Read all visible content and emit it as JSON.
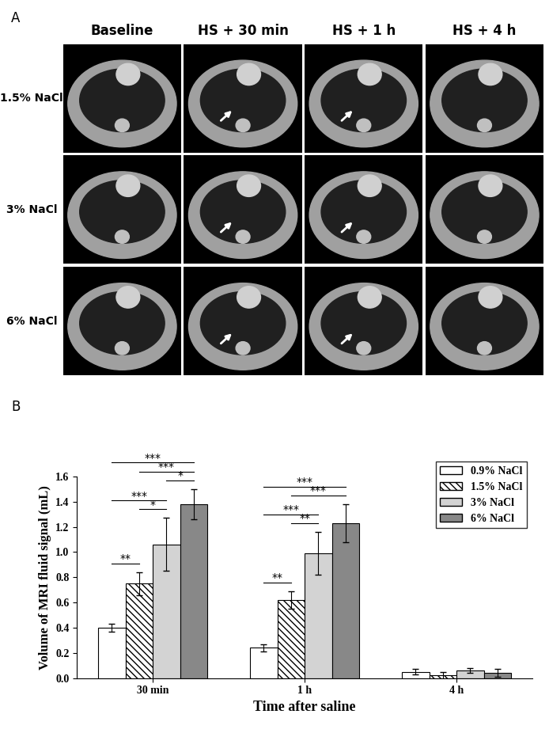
{
  "panel_a": {
    "label": "A",
    "columns": [
      "Baseline",
      "HS + 30 min",
      "HS + 1 h",
      "HS + 4 h"
    ],
    "rows": [
      "1.5% NaCl",
      "3% NaCl",
      "6% NaCl"
    ]
  },
  "chart_data": {
    "type": "bar",
    "panel_label": "B",
    "x_label": "Time after saline",
    "y_label": "Volume of MRI fluid signal (mL)",
    "categories": [
      "30 min",
      "1 h",
      "4 h"
    ],
    "series": [
      {
        "name": "0.9% NaCl",
        "color": "#ffffff",
        "values": [
          0.4,
          0.24,
          0.05
        ],
        "errors": [
          0.03,
          0.03,
          0.02
        ]
      },
      {
        "name": "1.5% NaCl",
        "color": "#ffffff",
        "values": [
          0.75,
          0.62,
          0.02
        ],
        "errors": [
          0.09,
          0.07,
          0.03
        ]
      },
      {
        "name": "3% NaCl",
        "color": "#d3d3d3",
        "values": [
          1.06,
          0.99,
          0.06
        ],
        "errors": [
          0.21,
          0.17,
          0.02
        ]
      },
      {
        "name": "6% NaCl",
        "color": "#888888",
        "values": [
          1.38,
          1.23,
          0.04
        ],
        "errors": [
          0.12,
          0.15,
          0.03
        ]
      }
    ],
    "significance": [
      {
        "category": "30 min",
        "from": "0.9% NaCl",
        "to": "1.5% NaCl",
        "label": "**"
      },
      {
        "category": "30 min",
        "from": "1.5% NaCl",
        "to": "3% NaCl",
        "label": "*"
      },
      {
        "category": "30 min",
        "from": "0.9% NaCl",
        "to": "3% NaCl",
        "label": "***"
      },
      {
        "category": "30 min",
        "from": "3% NaCl",
        "to": "6% NaCl",
        "label": "*"
      },
      {
        "category": "30 min",
        "from": "1.5% NaCl",
        "to": "6% NaCl",
        "label": "***"
      },
      {
        "category": "30 min",
        "from": "0.9% NaCl",
        "to": "6% NaCl",
        "label": "***"
      },
      {
        "category": "1 h",
        "from": "0.9% NaCl",
        "to": "1.5% NaCl",
        "label": "**"
      },
      {
        "category": "1 h",
        "from": "1.5% NaCl",
        "to": "3% NaCl",
        "label": "**"
      },
      {
        "category": "1 h",
        "from": "0.9% NaCl",
        "to": "3% NaCl",
        "label": "***"
      },
      {
        "category": "1 h",
        "from": "1.5% NaCl",
        "to": "6% NaCl",
        "label": "***"
      },
      {
        "category": "1 h",
        "from": "0.9% NaCl",
        "to": "6% NaCl",
        "label": "***"
      }
    ],
    "ylim": [
      0.0,
      1.6
    ],
    "yticks": [
      0.0,
      0.2,
      0.4,
      0.6,
      0.8,
      1.0,
      1.2,
      1.4,
      1.6
    ],
    "legend": "upper right"
  }
}
